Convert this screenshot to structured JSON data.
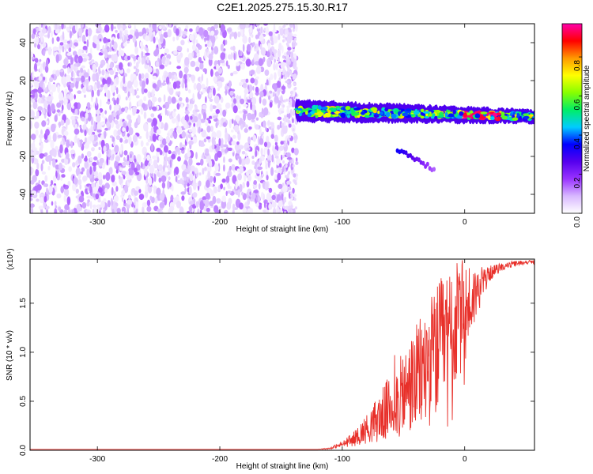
{
  "figure_title": "C2E1.2025.275.15.30.R17",
  "chart_data": [
    {
      "type": "heatmap",
      "title": "C2E1.2025.275.15.30.R17",
      "xlabel": "Height of straight line (km)",
      "ylabel": "Frequency (Hz)",
      "xlim": [
        -355,
        57
      ],
      "ylim": [
        -50,
        50
      ],
      "x_ticks": [
        -300,
        -200,
        -100,
        0
      ],
      "y_ticks": [
        -40,
        -20,
        0,
        20,
        40
      ],
      "colorbar": {
        "label": "Normalized spectral amplitude",
        "range": [
          0.0,
          0.97
        ],
        "ticks": [
          0.0,
          0.2,
          0.4,
          0.6,
          0.8
        ],
        "tick_labels": [
          "0.0",
          "0.2",
          "0.4",
          "0.6",
          "0.8"
        ],
        "colormap": [
          "#ffffff",
          "#d8b8ff",
          "#9933ff",
          "#5500ee",
          "#0000ff",
          "#00ccff",
          "#00ee66",
          "#88ff00",
          "#ffff00",
          "#ff9900",
          "#ff0000",
          "#ff00aa"
        ]
      },
      "features": [
        {
          "name": "noise-field",
          "x_range": [
            -355,
            -137
          ],
          "freq_range": [
            -50,
            50
          ],
          "amplitude_range": [
            0.02,
            0.15
          ]
        },
        {
          "name": "carrier-signal",
          "x_range": [
            -137,
            57
          ],
          "freq_center": [
            4,
            1
          ],
          "freq_halfwidth": 4,
          "amplitude_range": [
            0.3,
            0.97
          ]
        },
        {
          "name": "faint-trace",
          "x_range": [
            -55,
            -25
          ],
          "freq_start": -16,
          "freq_end": -27
        }
      ]
    },
    {
      "type": "line",
      "xlabel": "Height of straight line (km)",
      "ylabel": "SNR (10 * v/v)",
      "y_multiplier_label": "(x10⁴)",
      "xlim": [
        -355,
        57
      ],
      "ylim": [
        0,
        1.95
      ],
      "x_ticks": [
        -300,
        -200,
        -100,
        0
      ],
      "y_ticks": [
        0.0,
        0.5,
        1.0,
        1.5
      ],
      "y_tick_labels": [
        "0.0",
        "0.5",
        "1.0",
        "1.5"
      ],
      "series": [
        {
          "name": "SNR",
          "color": "#e8302a",
          "x": [
            -355,
            -300,
            -250,
            -200,
            -150,
            -120,
            -110,
            -100,
            -90,
            -80,
            -70,
            -60,
            -50,
            -40,
            -30,
            -20,
            -10,
            0,
            10,
            20,
            30,
            40,
            50,
            57
          ],
          "y": [
            0.01,
            0.01,
            0.01,
            0.01,
            0.01,
            0.01,
            0.02,
            0.06,
            0.12,
            0.22,
            0.33,
            0.45,
            0.56,
            0.72,
            0.88,
            1.05,
            1.22,
            1.4,
            1.62,
            1.8,
            1.87,
            1.9,
            1.92,
            1.92
          ],
          "noise_envelope": [
            0,
            0,
            0,
            0,
            0,
            0,
            0.01,
            0.03,
            0.08,
            0.15,
            0.25,
            0.35,
            0.45,
            0.55,
            0.65,
            0.7,
            0.7,
            0.55,
            0.25,
            0.08,
            0.04,
            0.03,
            0.02,
            0.02
          ]
        }
      ]
    }
  ]
}
